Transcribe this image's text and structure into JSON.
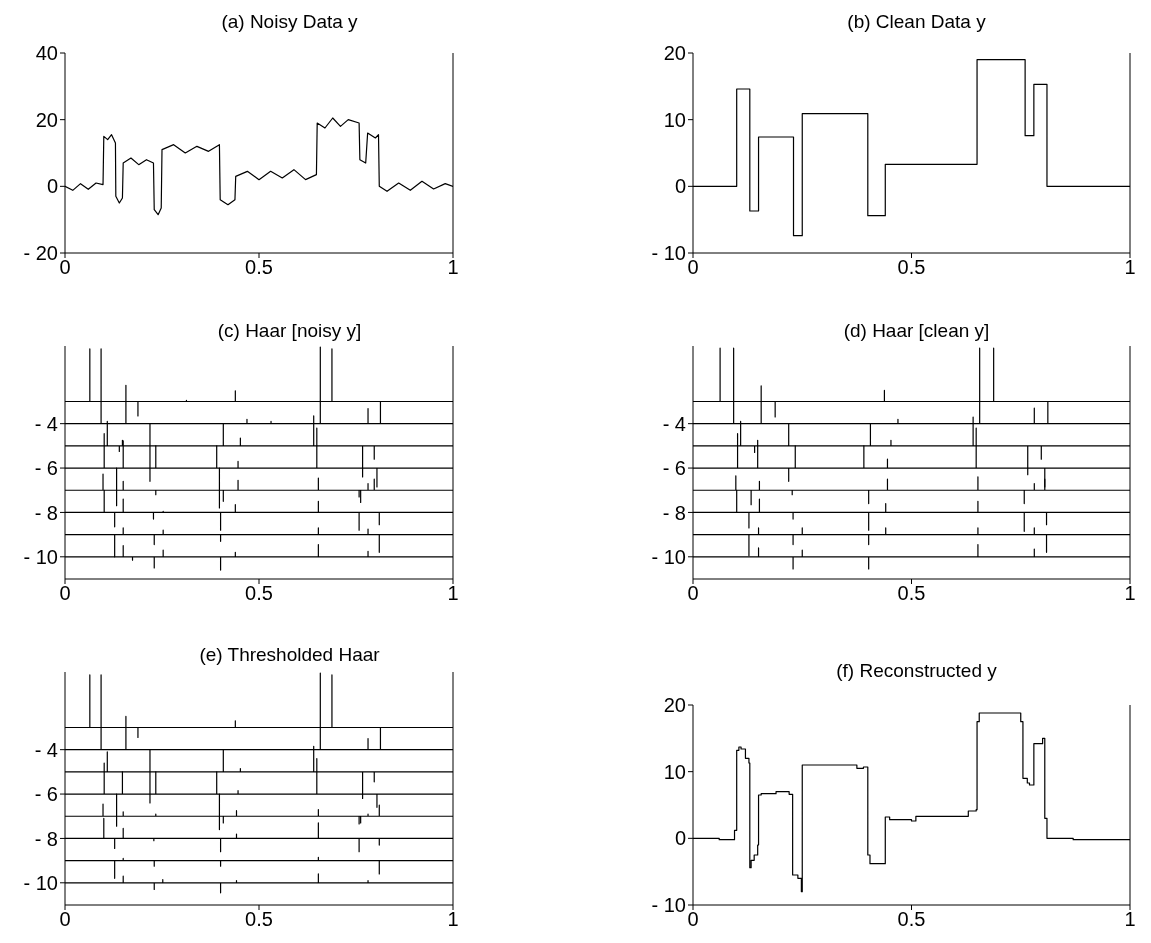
{
  "chart_data": [
    {
      "type": "line",
      "title": "(a) Noisy Data y",
      "xlim": [
        0,
        1
      ],
      "xticks": [
        0,
        0.5,
        1
      ],
      "ylim": [
        -20,
        40
      ],
      "yticks": [
        {
          "value": -20,
          "label": "- 20"
        },
        0,
        20,
        40
      ],
      "color": "#000000",
      "x": [
        0,
        0.02,
        0.04,
        0.06,
        0.08,
        0.098,
        0.1,
        0.11,
        0.12,
        0.13,
        0.131,
        0.14,
        0.148,
        0.15,
        0.17,
        0.19,
        0.21,
        0.228,
        0.23,
        0.24,
        0.248,
        0.25,
        0.28,
        0.31,
        0.34,
        0.37,
        0.398,
        0.4,
        0.42,
        0.438,
        0.44,
        0.47,
        0.5,
        0.53,
        0.56,
        0.59,
        0.62,
        0.648,
        0.65,
        0.67,
        0.69,
        0.71,
        0.73,
        0.758,
        0.76,
        0.775,
        0.78,
        0.8,
        0.808,
        0.81,
        0.83,
        0.86,
        0.89,
        0.92,
        0.95,
        0.98,
        1
      ],
      "values": [
        0,
        -1.2,
        0.8,
        -0.9,
        1,
        0.5,
        15,
        14,
        15.5,
        13,
        -3,
        -5,
        -3.5,
        7,
        8.5,
        6.5,
        8,
        7,
        -7,
        -8.5,
        -6.5,
        11,
        12.5,
        10,
        12,
        10.5,
        12.5,
        -4,
        -5.5,
        -4,
        3,
        4.5,
        2,
        4.5,
        2.5,
        5,
        2,
        3.5,
        19,
        17.5,
        20.5,
        18,
        20,
        19,
        8,
        7,
        16,
        14.5,
        15.5,
        0,
        -1.5,
        1,
        -1.2,
        1.5,
        -0.8,
        0.8,
        0
      ]
    },
    {
      "type": "step",
      "title": "(b) Clean Data y",
      "xlim": [
        0,
        1
      ],
      "xticks": [
        0,
        0.5,
        1
      ],
      "ylim": [
        -10,
        20
      ],
      "yticks": [
        {
          "value": -10,
          "label": "- 10"
        },
        0,
        10,
        20
      ],
      "color": "#000000",
      "x": [
        0,
        0.1,
        0.13,
        0.15,
        0.23,
        0.25,
        0.4,
        0.44,
        0.65,
        0.76,
        0.78,
        0.81,
        1
      ],
      "values": [
        0,
        14.6,
        -3.7,
        7.4,
        -7.4,
        10.9,
        -4.4,
        3.3,
        19,
        7.6,
        15.3,
        0,
        0
      ]
    },
    {
      "type": "line",
      "title": "(c)  Haar [noisy y]",
      "xlim": [
        0,
        1
      ],
      "xticks": [
        0,
        0.5,
        1
      ],
      "ylim": [
        -11,
        -0.5
      ],
      "yticks": [
        {
          "value": -4,
          "label": "- 4"
        },
        {
          "value": -6,
          "label": "- 6"
        },
        {
          "value": -8,
          "label": "- 8"
        },
        {
          "value": -10,
          "label": "- 10"
        }
      ],
      "series": [
        {
          "color": "#000000",
          "x": [
            0,
            0.064,
            0.064,
            0.064,
            0.188,
            0.188,
            0.188,
            0.313,
            0.313,
            0.313,
            0.439,
            0.439,
            0.439,
            0.688,
            0.688,
            0.688,
            1
          ],
          "values": [
            -3,
            -3,
            -0.63,
            -3,
            -3,
            -3.65,
            -3,
            -3,
            -2.95,
            -3,
            -3,
            -2.52,
            -3,
            -3,
            -0.63,
            -3,
            -3
          ]
        },
        {
          "color": "#000000",
          "x": [
            0,
            0.093,
            0.093,
            0.093,
            0.157,
            0.157,
            0.157,
            0.469,
            0.469,
            0.469,
            0.531,
            0.531,
            0.531,
            0.658,
            0.658,
            0.658,
            0.781,
            0.781,
            0.781,
            0.813,
            0.813,
            0.813,
            1
          ],
          "values": [
            -4,
            -4,
            -0.63,
            -4,
            -4,
            -2.27,
            -4,
            -4,
            -3.8,
            -4,
            -4,
            -3.9,
            -4,
            -4,
            -0.55,
            -4,
            -4,
            -3.32,
            -4,
            -4,
            -3,
            -4,
            -4
          ]
        },
        {
          "color": "#000000",
          "x": [
            0,
            0.109,
            0.109,
            0.109,
            0.14,
            0.14,
            0.14,
            0.148,
            0.148,
            0.148,
            0.408,
            0.408,
            0.408,
            0.452,
            0.452,
            0.452,
            0.641,
            0.641,
            0.641,
            0.767,
            0.767,
            0.767,
            0.797,
            0.797,
            0.797,
            1
          ],
          "values": [
            -5,
            -5,
            -3.9,
            -5,
            -5,
            -5.25,
            -5,
            -5,
            -4.75,
            -5,
            -5,
            -4,
            -5,
            -5,
            -4.65,
            -5,
            -5,
            -3.65,
            -5,
            -5,
            -6.4,
            -5,
            -5,
            -5.6,
            -5,
            -5
          ]
        },
        {
          "color": "#000000",
          "x": [
            0,
            0.101,
            0.101,
            0.101,
            0.15,
            0.15,
            0.15,
            0.219,
            0.219,
            0.219,
            0.219,
            0.219,
            0.234,
            0.234,
            0.234,
            0.391,
            0.391,
            0.391,
            0.446,
            0.446,
            0.446,
            0.649,
            0.649,
            0.649,
            0.804,
            0.804,
            0.804,
            1
          ],
          "values": [
            -6,
            -6,
            -4.45,
            -6,
            -6,
            -4.77,
            -6,
            -6,
            -4,
            -6,
            -6.6,
            -6,
            -6,
            -5,
            -6,
            -6,
            -5,
            -6,
            -6,
            -5.7,
            -6,
            -6,
            -4.2,
            -6,
            -6,
            -6.85,
            -6,
            -6
          ]
        },
        {
          "color": "#000000",
          "x": [
            0,
            0.098,
            0.098,
            0.098,
            0.133,
            0.133,
            0.133,
            0.133,
            0.133,
            0.15,
            0.15,
            0.15,
            0.234,
            0.234,
            0.234,
            0.398,
            0.398,
            0.398,
            0.398,
            0.398,
            0.408,
            0.408,
            0.408,
            0.446,
            0.446,
            0.446,
            0.653,
            0.653,
            0.653,
            0.758,
            0.758,
            0.758,
            0.762,
            0.762,
            0.762,
            0.781,
            0.781,
            0.781,
            0.797,
            0.797,
            0.797,
            1
          ],
          "values": [
            -7,
            -7,
            -6.27,
            -7,
            -7,
            -6,
            -7,
            -7.7,
            -7,
            -7,
            -6.6,
            -7,
            -7,
            -7.2,
            -7,
            -7,
            -6,
            -7,
            -7.8,
            -7,
            -7,
            -7.5,
            -7,
            -7,
            -6.55,
            -7,
            -7,
            -6.45,
            -7,
            -7,
            -7.3,
            -7,
            -7,
            -7.55,
            -7,
            -7,
            -6.7,
            -7,
            -7,
            -6.5,
            -7,
            -7
          ]
        },
        {
          "color": "#000000",
          "x": [
            0,
            0.101,
            0.101,
            0.101,
            0.128,
            0.128,
            0.128,
            0.15,
            0.15,
            0.15,
            0.228,
            0.228,
            0.228,
            0.253,
            0.253,
            0.253,
            0.401,
            0.401,
            0.401,
            0.439,
            0.439,
            0.439,
            0.653,
            0.653,
            0.653,
            0.758,
            0.758,
            0.758,
            0.81,
            0.81,
            0.81,
            1
          ],
          "values": [
            -8,
            -8,
            -7,
            -8,
            -8,
            -8.65,
            -8,
            -8,
            -7.4,
            -8,
            -8,
            -8.3,
            -8,
            -8,
            -7.95,
            -8,
            -8,
            -8.8,
            -8,
            -8,
            -7.65,
            -8,
            -8,
            -7.5,
            -8,
            -8,
            -8.8,
            -8,
            -8,
            -8.55,
            -8,
            -8
          ]
        },
        {
          "color": "#000000",
          "x": [
            0,
            0.128,
            0.128,
            0.128,
            0.15,
            0.15,
            0.15,
            0.23,
            0.23,
            0.23,
            0.253,
            0.253,
            0.253,
            0.401,
            0.401,
            0.401,
            0.653,
            0.653,
            0.653,
            0.781,
            0.781,
            0.781,
            0.81,
            0.81,
            0.81,
            1
          ],
          "values": [
            -9,
            -9,
            -10,
            -9,
            -9,
            -8.7,
            -9,
            -9,
            -9.45,
            -9,
            -9,
            -8.8,
            -9,
            -9,
            -9.3,
            -9,
            -9,
            -8.7,
            -9,
            -9,
            -8.75,
            -9,
            -9,
            -9.8,
            -9,
            -9
          ]
        },
        {
          "color": "#000000",
          "x": [
            0,
            0.15,
            0.15,
            0.15,
            0.174,
            0.174,
            0.174,
            0.23,
            0.23,
            0.23,
            0.253,
            0.253,
            0.253,
            0.401,
            0.401,
            0.401,
            0.439,
            0.439,
            0.439,
            0.653,
            0.653,
            0.653,
            0.781,
            0.781,
            0.781,
            1
          ],
          "values": [
            -10,
            -10,
            -9.5,
            -10,
            -10,
            -10.15,
            -10,
            -10,
            -10.5,
            -10,
            -10,
            -9.7,
            -10,
            -10,
            -10.6,
            -10,
            -10,
            -9.8,
            -10,
            -10,
            -9.45,
            -10,
            -10,
            -9.75,
            -10,
            -10
          ]
        }
      ]
    },
    {
      "type": "line",
      "title": "(d)  Haar [clean y]",
      "xlim": [
        0,
        1
      ],
      "xticks": [
        0,
        0.5,
        1
      ],
      "ylim": [
        -11,
        -0.5
      ],
      "yticks": [
        {
          "value": -4,
          "label": "- 4"
        },
        {
          "value": -6,
          "label": "- 6"
        },
        {
          "value": -8,
          "label": "- 8"
        },
        {
          "value": -10,
          "label": "- 10"
        }
      ],
      "series": [
        {
          "color": "#000000",
          "x": [
            0,
            0.062,
            0.062,
            0.062,
            0.188,
            0.188,
            0.188,
            0.438,
            0.438,
            0.438,
            0.688,
            0.688,
            0.688,
            1
          ],
          "values": [
            -3,
            -3,
            -0.6,
            -3,
            -3,
            -3.7,
            -3,
            -3,
            -2.5,
            -3,
            -3,
            -0.6,
            -3,
            -3
          ]
        },
        {
          "color": "#000000",
          "x": [
            0,
            0.093,
            0.093,
            0.093,
            0.156,
            0.156,
            0.156,
            0.469,
            0.469,
            0.469,
            0.656,
            0.656,
            0.656,
            0.781,
            0.781,
            0.781,
            0.812,
            0.812,
            0.812,
            1
          ],
          "values": [
            -4,
            -4,
            -0.6,
            -4,
            -4,
            -2.3,
            -4,
            -4,
            -3.8,
            -4,
            -4,
            -0.6,
            -4,
            -4,
            -3.3,
            -4,
            -4,
            -3,
            -4,
            -4
          ]
        },
        {
          "color": "#000000",
          "x": [
            0,
            0.109,
            0.109,
            0.109,
            0.141,
            0.141,
            0.141,
            0.219,
            0.219,
            0.219,
            0.406,
            0.406,
            0.406,
            0.453,
            0.453,
            0.453,
            0.641,
            0.641,
            0.641,
            0.766,
            0.766,
            0.766,
            0.797,
            0.797,
            0.797,
            1
          ],
          "values": [
            -5,
            -5,
            -3.9,
            -5,
            -5,
            -5.3,
            -5,
            -5,
            -4,
            -5,
            -5,
            -4,
            -5,
            -5,
            -4.75,
            -5,
            -5,
            -3.7,
            -5,
            -5,
            -6.3,
            -5,
            -5,
            -5.6,
            -5,
            -5
          ]
        },
        {
          "color": "#000000",
          "x": [
            0,
            0.102,
            0.102,
            0.102,
            0.148,
            0.148,
            0.148,
            0.219,
            0.219,
            0.219,
            0.234,
            0.234,
            0.234,
            0.391,
            0.391,
            0.391,
            0.445,
            0.445,
            0.445,
            0.648,
            0.648,
            0.648,
            0.805,
            0.805,
            0.805,
            1
          ],
          "values": [
            -6,
            -6,
            -4.45,
            -6,
            -6,
            -4.75,
            -6,
            -6,
            -6.6,
            -6,
            -6,
            -5,
            -6,
            -6,
            -5,
            -6,
            -6,
            -5.6,
            -6,
            -6,
            -4.2,
            -6,
            -6,
            -6.85,
            -6,
            -6
          ]
        },
        {
          "color": "#000000",
          "x": [
            0,
            0.098,
            0.098,
            0.098,
            0.133,
            0.133,
            0.133,
            0.152,
            0.152,
            0.152,
            0.227,
            0.227,
            0.227,
            0.402,
            0.402,
            0.402,
            0.445,
            0.445,
            0.445,
            0.652,
            0.652,
            0.652,
            0.758,
            0.758,
            0.758,
            0.781,
            0.781,
            0.781,
            0.805,
            0.805,
            0.805,
            1
          ],
          "values": [
            -7,
            -7,
            -6.35,
            -7,
            -7,
            -7.65,
            -7,
            -7,
            -6.6,
            -7,
            -7,
            -7.2,
            -7,
            -7,
            -7.6,
            -7,
            -7,
            -6.5,
            -7,
            -7,
            -6.4,
            -7,
            -7,
            -7.6,
            -7,
            -7,
            -6.7,
            -7,
            -7,
            -6.5,
            -7,
            -7
          ]
        },
        {
          "color": "#000000",
          "x": [
            0,
            0.1,
            0.1,
            0.1,
            0.128,
            0.128,
            0.128,
            0.152,
            0.152,
            0.152,
            0.229,
            0.229,
            0.229,
            0.402,
            0.402,
            0.402,
            0.441,
            0.441,
            0.441,
            0.652,
            0.652,
            0.652,
            0.758,
            0.758,
            0.758,
            0.809,
            0.809,
            0.809,
            1
          ],
          "values": [
            -8,
            -8,
            -7,
            -8,
            -8,
            -8.7,
            -8,
            -8,
            -7.4,
            -8,
            -8,
            -8.3,
            -8,
            -8,
            -8.8,
            -8,
            -8,
            -7.6,
            -8,
            -8,
            -7.5,
            -8,
            -8,
            -8.85,
            -8,
            -8,
            -8.55,
            -8,
            -8
          ]
        },
        {
          "color": "#000000",
          "x": [
            0,
            0.128,
            0.128,
            0.128,
            0.15,
            0.15,
            0.15,
            0.229,
            0.229,
            0.229,
            0.25,
            0.25,
            0.25,
            0.402,
            0.402,
            0.402,
            0.441,
            0.441,
            0.441,
            0.652,
            0.652,
            0.652,
            0.781,
            0.781,
            0.781,
            0.809,
            0.809,
            0.809,
            1
          ],
          "values": [
            -9,
            -9,
            -9.95,
            -9,
            -9,
            -8.7,
            -9,
            -9,
            -9.45,
            -9,
            -9,
            -8.7,
            -9,
            -9,
            -9.45,
            -9,
            -9,
            -8.7,
            -9,
            -9,
            -8.7,
            -9,
            -9,
            -8.7,
            -9,
            -9,
            -9.8,
            -9,
            -9
          ]
        },
        {
          "color": "#000000",
          "x": [
            0,
            0.15,
            0.15,
            0.15,
            0.229,
            0.229,
            0.229,
            0.25,
            0.25,
            0.25,
            0.402,
            0.402,
            0.402,
            0.652,
            0.652,
            0.652,
            0.781,
            0.781,
            0.781,
            1
          ],
          "values": [
            -10,
            -10,
            -9.6,
            -10,
            -10,
            -10.55,
            -10,
            -10,
            -9.7,
            -10,
            -10,
            -10.55,
            -10,
            -10,
            -9.45,
            -10,
            -10,
            -9.65,
            -10,
            -10
          ]
        }
      ]
    },
    {
      "type": "line",
      "title": "(e)  Thresholded Haar",
      "xlim": [
        0,
        1
      ],
      "xticks": [
        0,
        0.5,
        1
      ],
      "ylim": [
        -11,
        -0.5
      ],
      "yticks": [
        {
          "value": -4,
          "label": "- 4"
        },
        {
          "value": -6,
          "label": "- 6"
        },
        {
          "value": -8,
          "label": "- 8"
        },
        {
          "value": -10,
          "label": "- 10"
        }
      ],
      "series": [
        {
          "color": "#000000",
          "x": [
            0,
            0.064,
            0.064,
            0.064,
            0.188,
            0.188,
            0.188,
            0.439,
            0.439,
            0.439,
            0.688,
            0.688,
            0.688,
            1
          ],
          "values": [
            -3,
            -3,
            -0.63,
            -3,
            -3,
            -3.45,
            -3,
            -3,
            -2.7,
            -3,
            -3,
            -0.63,
            -3,
            -3
          ]
        },
        {
          "color": "#000000",
          "x": [
            0,
            0.093,
            0.093,
            0.093,
            0.157,
            0.157,
            0.157,
            0.658,
            0.658,
            0.658,
            0.781,
            0.781,
            0.781,
            0.813,
            0.813,
            0.813,
            1
          ],
          "values": [
            -4,
            -4,
            -0.63,
            -4,
            -4,
            -2.5,
            -4,
            -4,
            -0.55,
            -4,
            -4,
            -3.5,
            -4,
            -4,
            -3,
            -4,
            -4
          ]
        },
        {
          "color": "#000000",
          "x": [
            0,
            0.109,
            0.109,
            0.109,
            0.148,
            0.148,
            0.148,
            0.408,
            0.408,
            0.408,
            0.452,
            0.452,
            0.452,
            0.641,
            0.641,
            0.641,
            0.767,
            0.767,
            0.767,
            0.797,
            0.797,
            0.797,
            1
          ],
          "values": [
            -5,
            -5,
            -4.1,
            -5,
            -5,
            -5,
            -5,
            -5,
            -4,
            -5,
            -5,
            -4.85,
            -5,
            -5,
            -3.85,
            -5,
            -5,
            -6.2,
            -5,
            -5,
            -5.45,
            -5,
            -5
          ]
        },
        {
          "color": "#000000",
          "x": [
            0,
            0.101,
            0.101,
            0.101,
            0.148,
            0.148,
            0.148,
            0.219,
            0.219,
            0.219,
            0.219,
            0.219,
            0.234,
            0.234,
            0.234,
            0.391,
            0.391,
            0.391,
            0.446,
            0.446,
            0.446,
            0.649,
            0.649,
            0.649,
            0.804,
            0.804,
            0.804,
            1
          ],
          "values": [
            -6,
            -6,
            -4.6,
            -6,
            -6,
            -5,
            -6,
            -6,
            -4,
            -6,
            -6.4,
            -6,
            -6,
            -5,
            -6,
            -6,
            -5,
            -6,
            -6,
            -5.85,
            -6,
            -6,
            -4.4,
            -6,
            -6,
            -6.6,
            -6,
            -6
          ]
        },
        {
          "color": "#000000",
          "x": [
            0,
            0.098,
            0.098,
            0.098,
            0.133,
            0.133,
            0.133,
            0.133,
            0.133,
            0.15,
            0.15,
            0.15,
            0.234,
            0.234,
            0.234,
            0.398,
            0.398,
            0.398,
            0.398,
            0.398,
            0.408,
            0.408,
            0.408,
            0.442,
            0.442,
            0.442,
            0.653,
            0.653,
            0.653,
            0.758,
            0.758,
            0.758,
            0.762,
            0.762,
            0.762,
            0.781,
            0.781,
            0.781,
            0.81,
            0.81,
            0.81,
            1
          ],
          "values": [
            -7,
            -7,
            -6.45,
            -7,
            -7,
            -6,
            -7,
            -7.45,
            -7,
            -7,
            -6.8,
            -7,
            -7,
            -6.9,
            -7,
            -7,
            -6,
            -7,
            -7.6,
            -7,
            -7,
            -7.3,
            -7,
            -7,
            -6.75,
            -7,
            -7,
            -6.7,
            -7,
            -7,
            -7.35,
            -7,
            -7,
            -7.3,
            -7,
            -7,
            -6.9,
            -7,
            -7,
            -6.5,
            -7,
            -7
          ]
        },
        {
          "color": "#000000",
          "x": [
            0,
            0.1,
            0.1,
            0.1,
            0.128,
            0.128,
            0.128,
            0.15,
            0.15,
            0.15,
            0.229,
            0.229,
            0.229,
            0.401,
            0.401,
            0.401,
            0.442,
            0.442,
            0.442,
            0.653,
            0.653,
            0.653,
            0.758,
            0.758,
            0.758,
            0.81,
            0.81,
            0.81,
            1
          ],
          "values": [
            -8,
            -8,
            -7.1,
            -8,
            -8,
            -8.45,
            -8,
            -8,
            -7.55,
            -8,
            -8,
            -8.1,
            -8,
            -8,
            -8.6,
            -8,
            -8,
            -7.8,
            -8,
            -8,
            -7.3,
            -8,
            -8,
            -8.6,
            -8,
            -8,
            -8.3,
            -8,
            -8
          ]
        },
        {
          "color": "#000000",
          "x": [
            0,
            0.128,
            0.128,
            0.128,
            0.15,
            0.15,
            0.15,
            0.23,
            0.23,
            0.23,
            0.401,
            0.401,
            0.401,
            0.653,
            0.653,
            0.653,
            0.81,
            0.81,
            0.81,
            1
          ],
          "values": [
            -9,
            -9,
            -9.8,
            -9,
            -9,
            -8.9,
            -9,
            -9,
            -9.25,
            -9,
            -9,
            -9.25,
            -9,
            -9,
            -8.85,
            -9,
            -9,
            -9.6,
            -9,
            -9
          ]
        },
        {
          "color": "#000000",
          "x": [
            0,
            0.15,
            0.15,
            0.15,
            0.23,
            0.23,
            0.23,
            0.252,
            0.252,
            0.252,
            0.401,
            0.401,
            0.401,
            0.442,
            0.442,
            0.442,
            0.653,
            0.653,
            0.653,
            0.781,
            0.781,
            0.781,
            1
          ],
          "values": [
            -10,
            -10,
            -9.7,
            -10,
            -10,
            -10.3,
            -10,
            -10,
            -9.85,
            -10,
            -10,
            -10.45,
            -10,
            -10,
            -9.9,
            -10,
            -10,
            -9.6,
            -10,
            -10,
            -9.9,
            -10,
            -10
          ]
        }
      ]
    },
    {
      "type": "step",
      "title": "(f) Reconstructed y",
      "xlim": [
        0,
        1
      ],
      "xticks": [
        0,
        0.5,
        1
      ],
      "ylim": [
        -10,
        20
      ],
      "yticks": [
        {
          "value": -10,
          "label": "- 10"
        },
        0,
        10,
        20
      ],
      "color": "#000000",
      "x": [
        0,
        0.06,
        0.095,
        0.1,
        0.105,
        0.11,
        0.12,
        0.128,
        0.13,
        0.133,
        0.14,
        0.148,
        0.15,
        0.156,
        0.19,
        0.22,
        0.228,
        0.24,
        0.248,
        0.25,
        0.375,
        0.39,
        0.4,
        0.405,
        0.44,
        0.45,
        0.5,
        0.51,
        0.625,
        0.63,
        0.648,
        0.65,
        0.655,
        0.74,
        0.75,
        0.755,
        0.765,
        0.77,
        0.78,
        0.8,
        0.805,
        0.81,
        0.87,
        1
      ],
      "values": [
        0,
        -0.2,
        1.2,
        13.2,
        13.7,
        13.4,
        12,
        11.3,
        -4.4,
        -3.3,
        -2.5,
        -1,
        6.5,
        6.7,
        7,
        6.6,
        -5.5,
        -6,
        -8,
        11,
        10.5,
        10.7,
        -2.5,
        -3.8,
        3.2,
        2.8,
        2.6,
        3.3,
        3.3,
        4.1,
        4.3,
        17.5,
        18.8,
        18.8,
        17.5,
        9,
        8.3,
        8,
        14.2,
        15,
        3,
        0,
        -0.2,
        -0.2
      ]
    }
  ]
}
